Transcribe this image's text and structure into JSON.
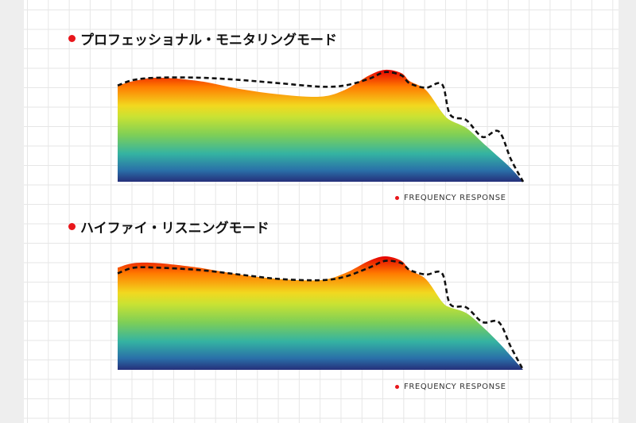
{
  "colors": {
    "accent_dot": "#e8161b",
    "gradient": [
      "#e50000",
      "#ff7a00",
      "#f2d81f",
      "#c9e233",
      "#7fcf56",
      "#34b3a2",
      "#2a6fa8",
      "#25307a"
    ],
    "target_line": "#111111"
  },
  "chart_data": [
    {
      "type": "area",
      "title": "プロフェッショナル・モニタリングモード",
      "legend": "FREQUENCY RESPONSE",
      "legend_position": "bottom-right",
      "grid": true,
      "x": [
        0,
        0.04,
        0.1,
        0.2,
        0.3,
        0.4,
        0.5,
        0.56,
        0.62,
        0.66,
        0.7,
        0.72,
        0.76,
        0.8,
        0.82,
        0.86,
        0.9,
        0.94,
        0.97,
        1.0
      ],
      "ylim": [
        0,
        1
      ],
      "series": [
        {
          "values": [
            0.86,
            0.9,
            0.93,
            0.9,
            0.83,
            0.78,
            0.76,
            0.82,
            0.95,
            1.0,
            0.97,
            0.9,
            0.82,
            0.62,
            0.55,
            0.48,
            0.35,
            0.22,
            0.12,
            0.0
          ]
        },
        {
          "values": [
            0.86,
            0.91,
            0.93,
            0.93,
            0.91,
            0.88,
            0.85,
            0.86,
            0.92,
            0.98,
            0.95,
            0.88,
            0.84,
            0.87,
            0.6,
            0.55,
            0.4,
            0.45,
            0.2,
            0.0
          ]
        }
      ]
    },
    {
      "type": "area",
      "title": "ハイファイ・リスニングモード",
      "legend": "FREQUENCY RESPONSE",
      "legend_position": "bottom-right",
      "grid": true,
      "x": [
        0,
        0.04,
        0.1,
        0.2,
        0.3,
        0.4,
        0.5,
        0.56,
        0.62,
        0.66,
        0.7,
        0.72,
        0.76,
        0.8,
        0.82,
        0.86,
        0.9,
        0.94,
        0.97,
        1.0
      ],
      "ylim": [
        0,
        1
      ],
      "series": [
        {
          "values": [
            0.9,
            0.94,
            0.94,
            0.9,
            0.84,
            0.8,
            0.79,
            0.85,
            0.96,
            1.0,
            0.96,
            0.88,
            0.8,
            0.6,
            0.55,
            0.5,
            0.38,
            0.24,
            0.12,
            0.0
          ]
        },
        {
          "values": [
            0.85,
            0.9,
            0.9,
            0.88,
            0.84,
            0.8,
            0.79,
            0.82,
            0.9,
            0.96,
            0.94,
            0.88,
            0.84,
            0.85,
            0.58,
            0.55,
            0.42,
            0.42,
            0.2,
            0.0
          ]
        }
      ]
    }
  ]
}
